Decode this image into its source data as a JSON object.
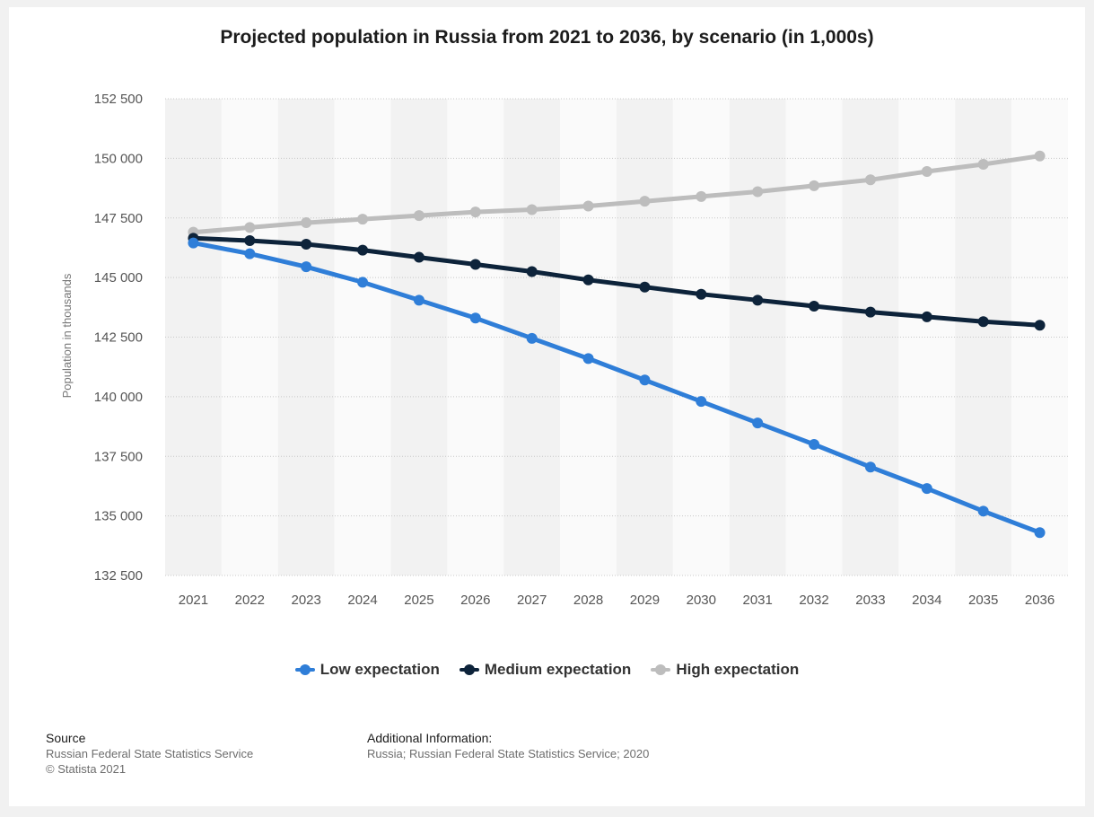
{
  "chart_data": {
    "type": "line",
    "title": "Projected population in Russia from 2021 to 2036, by scenario (in 1,000s)",
    "ylabel": "Population in thousands",
    "xlabel": "",
    "categories": [
      "2021",
      "2022",
      "2023",
      "2024",
      "2025",
      "2026",
      "2027",
      "2028",
      "2029",
      "2030",
      "2031",
      "2032",
      "2033",
      "2034",
      "2035",
      "2036"
    ],
    "ylim": [
      132500,
      152500
    ],
    "yticks": [
      132500,
      135000,
      137500,
      140000,
      142500,
      145000,
      147500,
      150000,
      152500
    ],
    "ytick_labels": [
      "132 500",
      "135 000",
      "137 500",
      "140 000",
      "142 500",
      "145 000",
      "147 500",
      "150 000",
      "152 500"
    ],
    "grid": true,
    "legend_position": "bottom",
    "series": [
      {
        "name": "Low expectation",
        "color": "#2f7ed8",
        "values": [
          146450,
          146000,
          145450,
          144800,
          144050,
          143300,
          142450,
          141600,
          140700,
          139800,
          138900,
          138000,
          137050,
          136150,
          135200,
          134300
        ]
      },
      {
        "name": "Medium expectation",
        "color": "#0d233a",
        "values": [
          146650,
          146550,
          146400,
          146150,
          145850,
          145550,
          145250,
          144900,
          144600,
          144300,
          144050,
          143800,
          143550,
          143350,
          143150,
          143000
        ]
      },
      {
        "name": "High expectation",
        "color": "#bdbdbd",
        "values": [
          146900,
          147100,
          147300,
          147450,
          147600,
          147750,
          147850,
          148000,
          148200,
          148400,
          148600,
          148850,
          149100,
          149450,
          149750,
          150100
        ]
      }
    ]
  },
  "footer": {
    "source_heading": "Source",
    "source_text": "Russian Federal State Statistics Service",
    "copyright": "© Statista 2021",
    "additional_heading": "Additional Information:",
    "additional_text": "Russia; Russian Federal State Statistics Service; 2020"
  }
}
